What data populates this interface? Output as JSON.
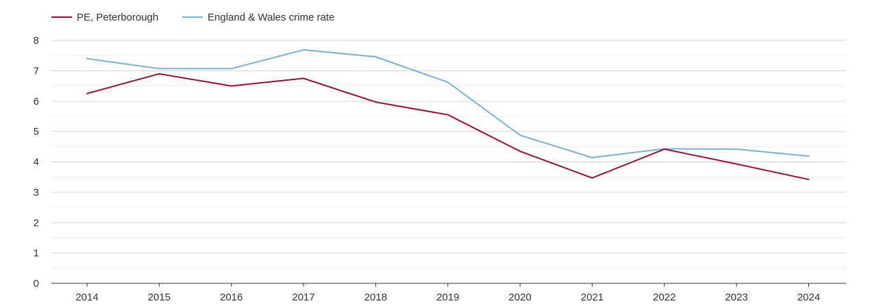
{
  "chart_data": {
    "type": "line",
    "title": "",
    "xlabel": "",
    "ylabel": "",
    "x": [
      "2014",
      "2015",
      "2016",
      "2017",
      "2018",
      "2019",
      "2020",
      "2021",
      "2022",
      "2023",
      "2024"
    ],
    "ylim": [
      0,
      8
    ],
    "yticks": [
      "0",
      "1",
      "2",
      "3",
      "4",
      "5",
      "6",
      "7",
      "8"
    ],
    "grid": true,
    "legend_position": "top-left",
    "series": [
      {
        "name": "PE, Peterborough",
        "color": "#9b0d32",
        "values": [
          6.25,
          6.9,
          6.5,
          6.75,
          5.97,
          5.55,
          4.35,
          3.47,
          4.42,
          3.93,
          3.42
        ]
      },
      {
        "name": "England & Wales crime rate",
        "color": "#78b1cf",
        "values": [
          7.4,
          7.07,
          7.07,
          7.69,
          7.46,
          6.62,
          4.88,
          4.14,
          4.43,
          4.42,
          4.19
        ]
      }
    ]
  }
}
